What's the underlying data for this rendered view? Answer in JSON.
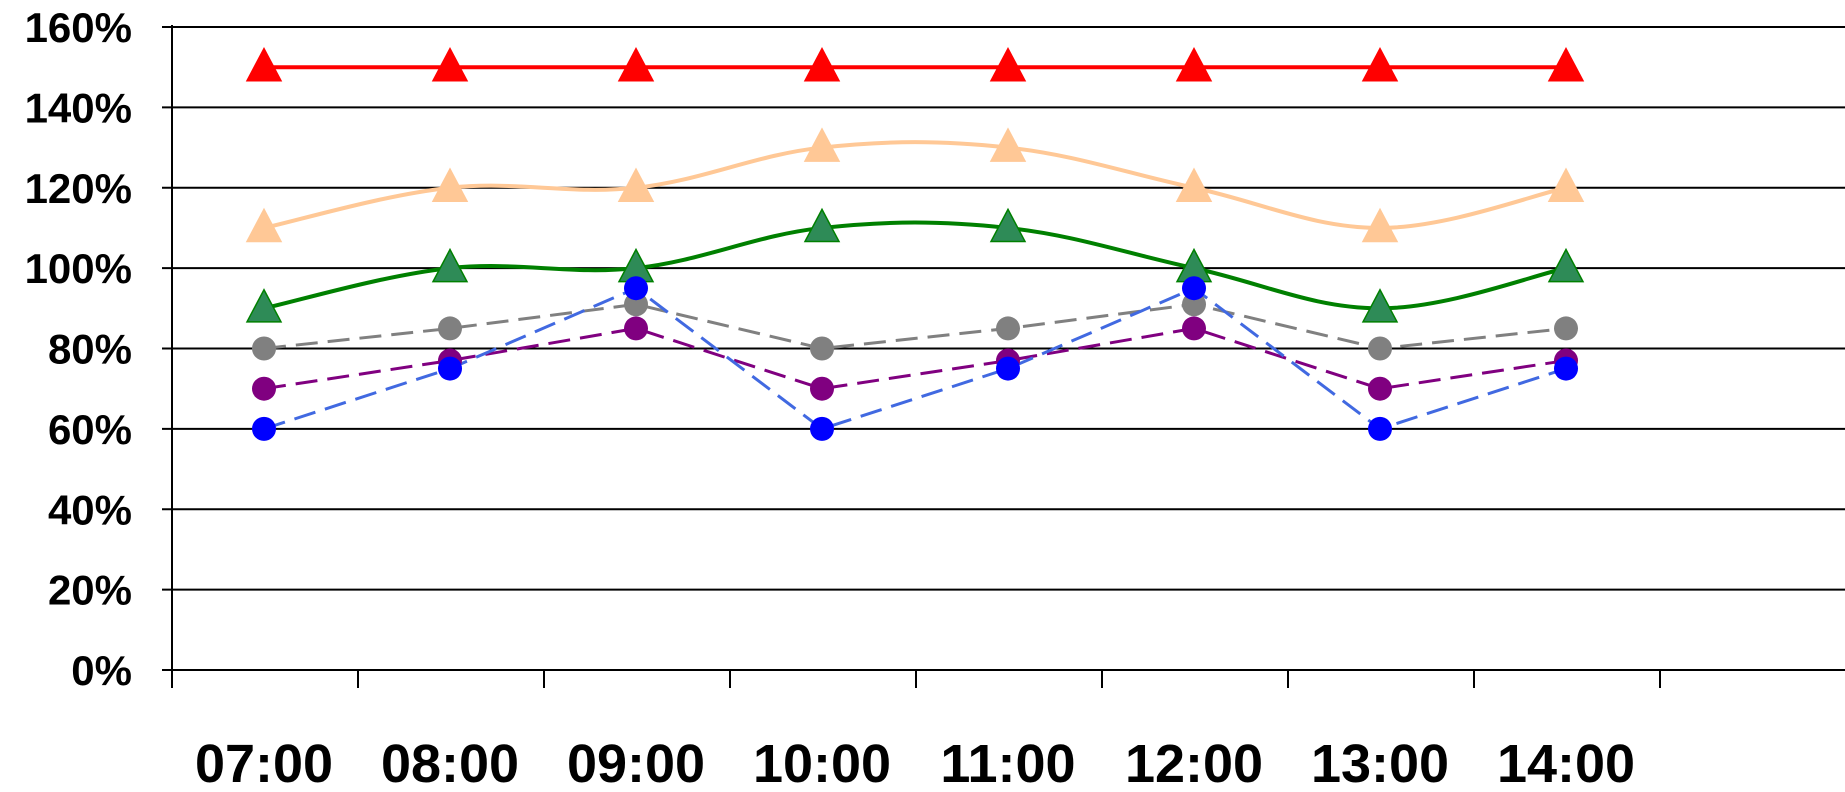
{
  "chart_data": {
    "type": "line",
    "title": "",
    "xlabel": "",
    "ylabel": "",
    "categories": [
      "07:00",
      "08:00",
      "09:00",
      "10:00",
      "11:00",
      "12:00",
      "13:00",
      "14:00"
    ],
    "y_tick_labels": [
      "0%",
      "20%",
      "40%",
      "60%",
      "80%",
      "100%",
      "120%",
      "140%",
      "160%"
    ],
    "ylim": [
      0,
      160
    ],
    "y_unit": "%",
    "grid": "horizontal",
    "legend": "none",
    "series": [
      {
        "color": "#ff0000",
        "marker": "triangle",
        "line": "solid",
        "smooth": false,
        "values": [
          150,
          150,
          150,
          150,
          150,
          150,
          150,
          150
        ]
      },
      {
        "color": "#ffc896",
        "marker": "triangle",
        "line": "solid",
        "smooth": true,
        "values": [
          110,
          120,
          120,
          130,
          130,
          120,
          110,
          120
        ]
      },
      {
        "color": "#008000",
        "marker_fill": "#2e8b57",
        "marker": "triangle",
        "line": "solid",
        "smooth": true,
        "values": [
          90,
          100,
          100,
          110,
          110,
          100,
          90,
          100
        ]
      },
      {
        "color": "#808080",
        "marker": "circle",
        "line": "dashed",
        "smooth": false,
        "values": [
          80,
          85,
          91,
          80,
          85,
          91,
          80,
          85
        ]
      },
      {
        "color": "#800080",
        "marker": "circle",
        "line": "dashed",
        "smooth": false,
        "values": [
          70,
          77,
          85,
          70,
          77,
          85,
          70,
          77
        ]
      },
      {
        "color": "#4169e1",
        "marker_fill": "#0000ff",
        "marker": "circle",
        "line": "dashed",
        "smooth": false,
        "values": [
          60,
          75,
          95,
          60,
          75,
          95,
          60,
          75
        ]
      }
    ]
  }
}
